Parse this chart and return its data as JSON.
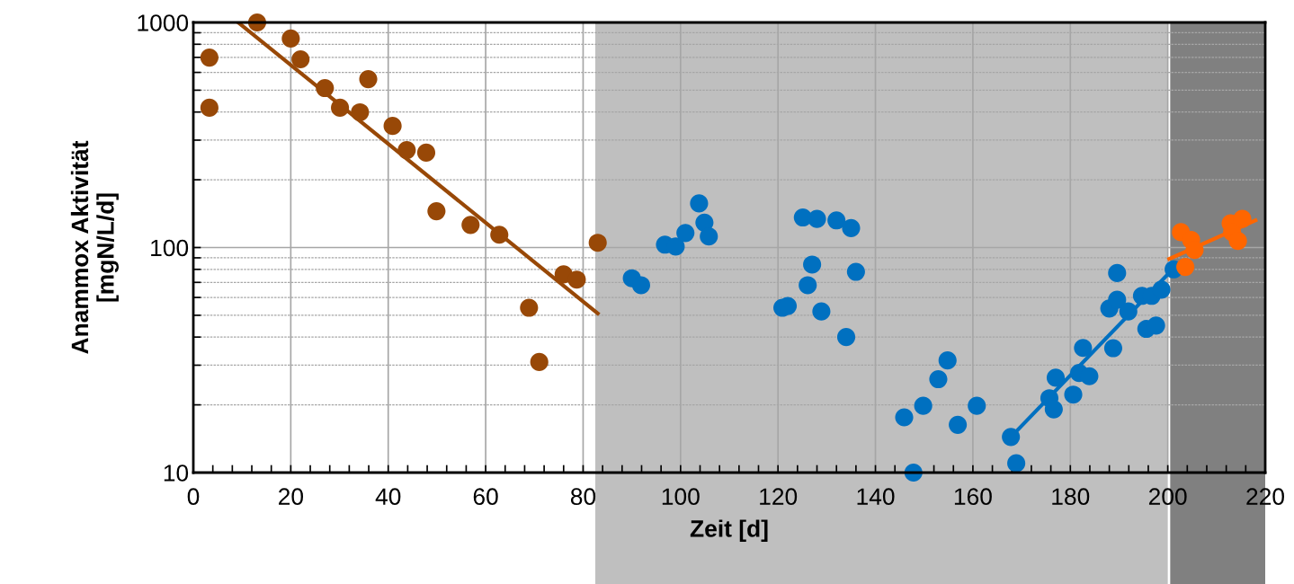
{
  "chart_data": {
    "type": "scatter",
    "xlabel": "Zeit [d]",
    "ylabel": "Anammox Aktivität\n[mgN/L/d]",
    "log": "y",
    "grid": true,
    "marker": "circle",
    "xlim": [
      0,
      220
    ],
    "ylim": [
      10,
      1000
    ],
    "xticks": [
      0,
      {
        "value": 4,
        "label": null
      },
      {
        "value": 8,
        "label": null
      },
      {
        "value": 12,
        "label": null
      },
      {
        "value": 16,
        "label": null
      },
      20,
      {
        "value": 24,
        "label": null
      },
      {
        "value": 28,
        "label": null
      },
      {
        "value": 32,
        "label": null
      },
      {
        "value": 36,
        "label": null
      },
      40,
      {
        "value": 44,
        "label": null
      },
      {
        "value": 48,
        "label": null
      },
      {
        "value": 52,
        "label": null
      },
      {
        "value": 56,
        "label": null
      },
      60,
      {
        "value": 64,
        "label": null
      },
      {
        "value": 68,
        "label": null
      },
      {
        "value": 72,
        "label": null
      },
      {
        "value": 76,
        "label": null
      },
      80,
      {
        "value": 84,
        "label": null
      },
      {
        "value": 88,
        "label": null
      },
      {
        "value": 92,
        "label": null
      },
      {
        "value": 96,
        "label": null
      },
      100,
      {
        "value": 104,
        "label": null
      },
      {
        "value": 108,
        "label": null
      },
      {
        "value": 112,
        "label": null
      },
      {
        "value": 116,
        "label": null
      },
      120,
      {
        "value": 124,
        "label": null
      },
      {
        "value": 128,
        "label": null
      },
      {
        "value": 132,
        "label": null
      },
      {
        "value": 136,
        "label": null
      },
      140,
      {
        "value": 144,
        "label": null
      },
      {
        "value": 148,
        "label": null
      },
      {
        "value": 152,
        "label": null
      },
      {
        "value": 156,
        "label": null
      },
      160,
      {
        "value": 164,
        "label": null
      },
      {
        "value": 168,
        "label": null
      },
      {
        "value": 172,
        "label": null
      },
      {
        "value": 176,
        "label": null
      },
      180,
      {
        "value": 184,
        "label": null
      },
      {
        "value": 188,
        "label": null
      },
      {
        "value": 192,
        "label": null
      },
      {
        "value": 196,
        "label": null
      },
      200,
      {
        "value": 204,
        "label": null
      },
      {
        "value": 208,
        "label": null
      },
      {
        "value": 212,
        "label": null
      },
      {
        "value": 216,
        "label": null
      },
      220
    ],
    "yticks": [
      10,
      {
        "value": 20,
        "label": null
      },
      {
        "value": 30,
        "label": null
      },
      {
        "value": 40,
        "label": null
      },
      {
        "value": 50,
        "label": null
      },
      {
        "value": 60,
        "label": null
      },
      {
        "value": 70,
        "label": null
      },
      {
        "value": 80,
        "label": null
      },
      {
        "value": 90,
        "label": null
      },
      100,
      {
        "value": 200,
        "label": null
      },
      {
        "value": 300,
        "label": null
      },
      {
        "value": 400,
        "label": null
      },
      {
        "value": 500,
        "label": null
      },
      {
        "value": 600,
        "label": null
      },
      {
        "value": 700,
        "label": null
      },
      {
        "value": 800,
        "label": null
      },
      {
        "value": 900,
        "label": null
      },
      1000
    ],
    "bands": [
      {
        "axis": "x",
        "from": 82.5,
        "to": 200,
        "color": "#bfbfbf"
      },
      {
        "axis": "x",
        "from": 200.5,
        "to": 220,
        "color": "#808080"
      }
    ],
    "series": [
      {
        "color": "#984807",
        "x": [
          3.3,
          3.3,
          13.1,
          20,
          22,
          27,
          30.1,
          34.2,
          35.9,
          40.9,
          43.8,
          47.8,
          49.9,
          56.9,
          62.8,
          68.9,
          71,
          76,
          78.7,
          83
        ],
        "values": [
          698,
          418,
          1000,
          848,
          686,
          511,
          418,
          399,
          560,
          347,
          271,
          264,
          145,
          126,
          114,
          54,
          31,
          76,
          72,
          105
        ]
      },
      {
        "type": "line",
        "marker": "none",
        "color": "#984807",
        "x": [
          9.2,
          83
        ],
        "values": [
          1000,
          51
        ]
      },
      {
        "color": "#0070c0",
        "x": [
          90,
          91.9,
          96.8,
          99,
          101,
          103.8,
          104.9,
          105.8,
          125.1,
          128,
          132,
          135,
          127,
          126.1,
          136,
          120.9,
          122,
          128.9,
          134,
          145.9,
          147.8,
          149.8,
          152.9,
          154.8,
          156.9,
          160.8,
          167.8,
          168.9,
          175.7,
          176.6,
          177,
          180.6,
          181.8,
          183.9,
          182.6,
          188.8,
          188,
          189.6,
          189.6,
          191.9,
          194.7,
          196.7,
          195.6,
          197.6,
          198.7,
          201.2
        ],
        "values": [
          73,
          68,
          103,
          101,
          116,
          157,
          129,
          112,
          136,
          134,
          132,
          122,
          84,
          68,
          78,
          54,
          55,
          52,
          40,
          17.6,
          10,
          19.8,
          26,
          31.5,
          16.3,
          19.8,
          14.4,
          11,
          21.4,
          19.1,
          26.4,
          22.2,
          27.7,
          26.8,
          35.8,
          35.7,
          53.6,
          58.6,
          77,
          52,
          61,
          61,
          43.5,
          45,
          65,
          80
        ]
      },
      {
        "type": "line",
        "marker": "none",
        "color": "#0070c0",
        "x": [
          167.8,
          201
        ],
        "values": [
          14.4,
          80
        ]
      },
      {
        "type": "line",
        "marker": "none",
        "color": "#ff6600",
        "x": [
          200.3,
          218
        ],
        "values": [
          89,
          132
        ]
      },
      {
        "color": "#ff6600",
        "x": [
          202.7,
          204.8,
          205.5,
          203.6,
          212.9,
          213.2,
          215.3,
          214.4
        ],
        "values": [
          117,
          108,
          97.5,
          82,
          128,
          117,
          134,
          107
        ]
      }
    ]
  }
}
